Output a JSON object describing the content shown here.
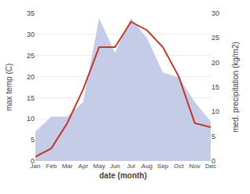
{
  "chart_data": {
    "type": "line",
    "xlabel": "date (month)",
    "ylabel": "max temp (C)",
    "y2label": "med. precipitation (kg/m2)",
    "categories": [
      "Jan",
      "Feb",
      "Mar",
      "Apr",
      "May",
      "Jun",
      "Jul",
      "Aug",
      "Sep",
      "Oct",
      "Nov",
      "Dec"
    ],
    "series": [
      {
        "type": "area",
        "axis": "y2",
        "color": "#c5cce8",
        "values": [
          6,
          9,
          9,
          12,
          29,
          22,
          29,
          25,
          18,
          17,
          12,
          8
        ]
      },
      {
        "type": "line",
        "color": "#c0392b",
        "values": [
          1,
          3,
          9,
          17,
          27,
          27,
          33,
          31,
          27,
          20,
          9,
          8
        ]
      }
    ],
    "ylim": [
      0,
      35
    ],
    "yticks": [
      0,
      5,
      10,
      15,
      20,
      25,
      30,
      35
    ],
    "y2lim": [
      0,
      30
    ],
    "y2ticks": [
      0,
      5,
      10,
      15,
      20,
      25,
      30
    ],
    "grid": true
  }
}
